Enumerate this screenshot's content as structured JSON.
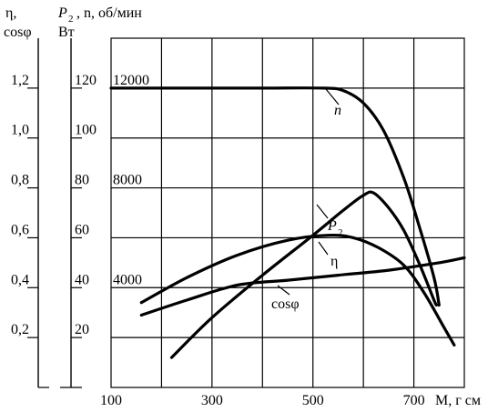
{
  "chart_data": {
    "type": "line",
    "xlabel": "M, г см",
    "x_ticks": [
      100,
      300,
      500,
      700
    ],
    "xlim": [
      100,
      800
    ],
    "axes": {
      "eta": {
        "label": "η,",
        "label2": "cosφ",
        "ticks": [
          "1,2",
          "1,0",
          "0,8",
          "0,6",
          "0,4",
          "0,2"
        ],
        "ylim": [
          0,
          1.4
        ]
      },
      "power": {
        "label": "P",
        "label_sub": "2",
        "label2": "Вт",
        "ticks": [
          "120",
          "100",
          "80",
          "60",
          "40",
          "20"
        ],
        "ylim": [
          0,
          140
        ]
      },
      "speed": {
        "label": ", n, об/мин",
        "ticks": [
          "12000",
          "8000",
          "4000"
        ],
        "ylim": [
          0,
          14000
        ]
      }
    },
    "series": [
      {
        "name": "n",
        "axis": "speed",
        "points": [
          [
            100,
            12000
          ],
          [
            250,
            12000
          ],
          [
            400,
            12000
          ],
          [
            520,
            12000
          ],
          [
            560,
            11900
          ],
          [
            600,
            11400
          ],
          [
            640,
            10300
          ],
          [
            680,
            8400
          ],
          [
            710,
            6500
          ],
          [
            740,
            4400
          ],
          [
            750,
            3300
          ]
        ]
      },
      {
        "name": "P",
        "name_sub": "2",
        "axis": "power",
        "points": [
          [
            220,
            12
          ],
          [
            300,
            28
          ],
          [
            400,
            45
          ],
          [
            500,
            61
          ],
          [
            560,
            71
          ],
          [
            600,
            77
          ],
          [
            620,
            78
          ],
          [
            650,
            72
          ],
          [
            680,
            63
          ],
          [
            710,
            50
          ],
          [
            740,
            35
          ],
          [
            745,
            33
          ]
        ]
      },
      {
        "name": "η",
        "axis": "eta",
        "points": [
          [
            160,
            0.34
          ],
          [
            250,
            0.44
          ],
          [
            350,
            0.53
          ],
          [
            450,
            0.59
          ],
          [
            530,
            0.61
          ],
          [
            580,
            0.6
          ],
          [
            630,
            0.56
          ],
          [
            680,
            0.49
          ],
          [
            720,
            0.38
          ],
          [
            760,
            0.24
          ],
          [
            780,
            0.17
          ]
        ]
      },
      {
        "name": "cosφ",
        "axis": "eta",
        "points": [
          [
            160,
            0.29
          ],
          [
            250,
            0.35
          ],
          [
            350,
            0.41
          ],
          [
            450,
            0.43
          ],
          [
            550,
            0.45
          ],
          [
            650,
            0.47
          ],
          [
            750,
            0.5
          ],
          [
            800,
            0.52
          ]
        ]
      }
    ]
  }
}
